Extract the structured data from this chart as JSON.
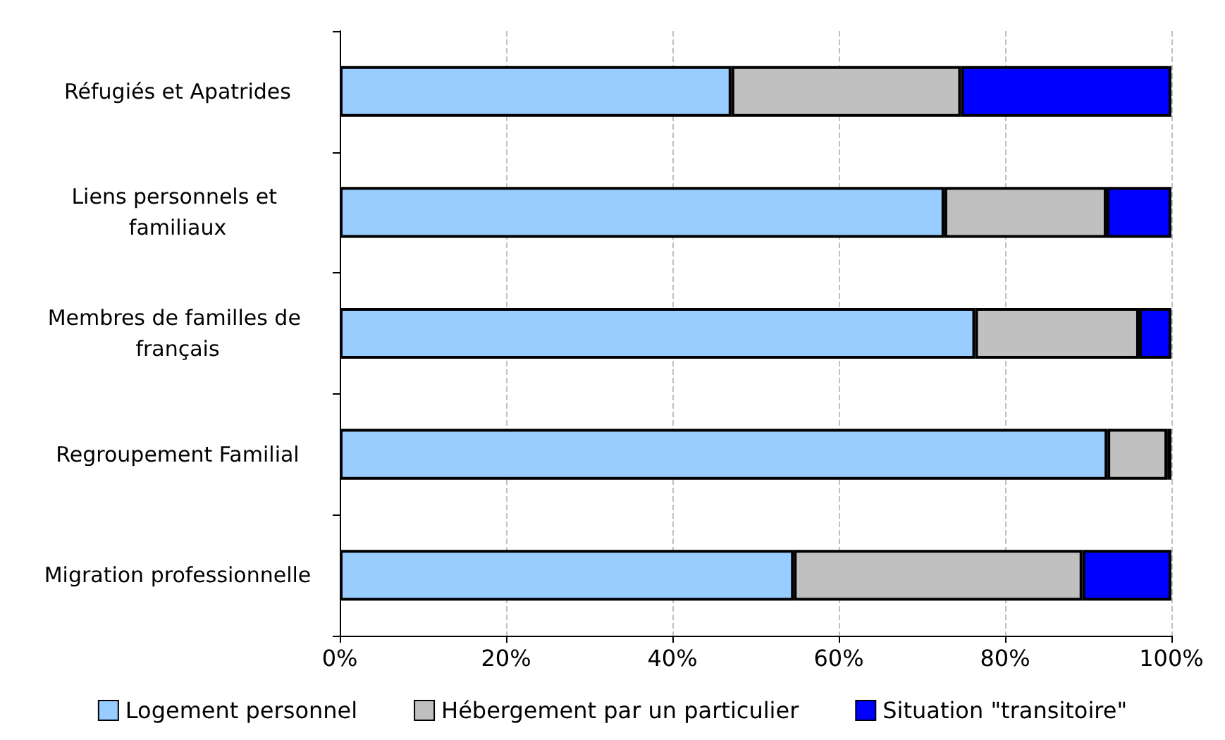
{
  "chart_data": {
    "type": "bar",
    "orientation": "horizontal",
    "stacked": true,
    "categories": [
      "Réfugiés et Apatrides",
      "Liens personnels et familiaux",
      "Membres de familles de français",
      "Regroupement Familial",
      "Migration professionnelle"
    ],
    "series": [
      {
        "name": "Logement personnel",
        "color": "#99ccff",
        "values": [
          47.1,
          72.7,
          76.4,
          92.3,
          54.6
        ]
      },
      {
        "name": "Hébergement par un particulier",
        "color": "#c0c0c0",
        "values": [
          27.6,
          19.5,
          19.7,
          7.2,
          34.7
        ]
      },
      {
        "name": "Situation \"transitoire\"",
        "color": "#0000ff",
        "values": [
          25.3,
          7.8,
          3.9,
          0.5,
          10.7
        ]
      }
    ],
    "xlim": [
      0,
      100
    ],
    "xticks": [
      {
        "value": 0,
        "label": "0%"
      },
      {
        "value": 20,
        "label": "20%"
      },
      {
        "value": 40,
        "label": "40%"
      },
      {
        "value": 60,
        "label": "60%"
      },
      {
        "value": 80,
        "label": "80%"
      },
      {
        "value": 100,
        "label": "100%"
      }
    ],
    "grid": "x",
    "legend": "bottom"
  }
}
